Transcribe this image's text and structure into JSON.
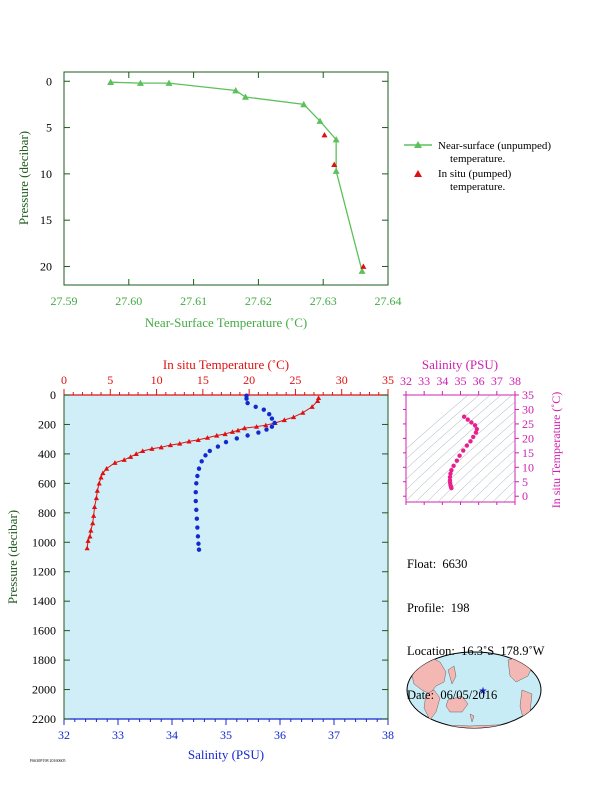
{
  "chart_data": [
    {
      "type": "line",
      "xlabel": "Near-Surface Temperature (˚C)",
      "ylabel": "Pressure (decibar)",
      "xlim": [
        27.59,
        27.64
      ],
      "ylim": [
        22,
        -1
      ],
      "x_ticks": [
        "27.59",
        "27.60",
        "27.61",
        "27.62",
        "27.63",
        "27.64"
      ],
      "y_ticks": [
        "0",
        "5",
        "10",
        "15",
        "20"
      ],
      "legend_placement": "right",
      "series": [
        {
          "name": "Near-surface (unpumped) temperature.",
          "color": "#5cc15c",
          "marker": "triangle",
          "points": [
            [
              27.5972,
              0.1
            ],
            [
              27.6018,
              0.2
            ],
            [
              27.6062,
              0.2
            ],
            [
              27.6165,
              1.0
            ],
            [
              27.618,
              1.7
            ],
            [
              27.627,
              2.5
            ],
            [
              27.6295,
              4.3
            ],
            [
              27.632,
              6.3
            ],
            [
              27.632,
              9.7
            ],
            [
              27.636,
              20.5
            ]
          ]
        },
        {
          "name": "In situ (pumped) temperature.",
          "color": "#e01010",
          "marker": "triangle",
          "points": [
            [
              27.6302,
              5.8
            ],
            [
              27.6317,
              9.0
            ],
            [
              27.6362,
              20.0
            ]
          ]
        }
      ]
    },
    {
      "type": "scatter",
      "xlabel_bottom": "Salinity (PSU)",
      "xlabel_top": "In situ Temperature (˚C)",
      "ylabel": "Pressure (decibar)",
      "salinity_range": [
        32,
        38
      ],
      "temperature_range": [
        0,
        35
      ],
      "pressure_range": [
        0,
        2200
      ],
      "salinity_ticks": [
        "32",
        "33",
        "34",
        "35",
        "36",
        "37",
        "38"
      ],
      "temperature_ticks": [
        "0",
        "5",
        "10",
        "15",
        "20",
        "25",
        "30",
        "35"
      ],
      "pressure_ticks": [
        "0",
        "200",
        "400",
        "600",
        "800",
        "1000",
        "1200",
        "1400",
        "1600",
        "1800",
        "2000",
        "2200"
      ],
      "background": "#d0eef8",
      "temperature_series": {
        "color": "#e01010",
        "marker": "triangle",
        "points": [
          [
            27.5,
            20
          ],
          [
            27.4,
            40
          ],
          [
            26.8,
            80
          ],
          [
            25.8,
            120
          ],
          [
            24.8,
            150
          ],
          [
            23.8,
            170
          ],
          [
            22.8,
            190
          ],
          [
            21.8,
            205
          ],
          [
            20.8,
            215
          ],
          [
            19.5,
            225
          ],
          [
            18.8,
            240
          ],
          [
            18.2,
            250
          ],
          [
            17.4,
            265
          ],
          [
            16.5,
            275
          ],
          [
            15.5,
            290
          ],
          [
            14.5,
            305
          ],
          [
            13.5,
            315
          ],
          [
            12.5,
            330
          ],
          [
            11.5,
            340
          ],
          [
            10.5,
            355
          ],
          [
            9.5,
            365
          ],
          [
            8.5,
            380
          ],
          [
            7.8,
            400
          ],
          [
            7.2,
            420
          ],
          [
            6.5,
            440
          ],
          [
            5.5,
            460
          ],
          [
            4.6,
            500
          ],
          [
            4.2,
            530
          ],
          [
            4.0,
            560
          ],
          [
            3.8,
            600
          ],
          [
            3.6,
            650
          ],
          [
            3.5,
            700
          ],
          [
            3.3,
            760
          ],
          [
            3.2,
            820
          ],
          [
            3.1,
            870
          ],
          [
            2.9,
            920
          ],
          [
            2.8,
            960
          ],
          [
            2.6,
            990
          ],
          [
            2.5,
            1040
          ]
        ]
      },
      "salinity_series": {
        "color": "#1428d0",
        "marker": "dot",
        "points": [
          [
            35.38,
            5
          ],
          [
            35.38,
            25
          ],
          [
            35.4,
            55
          ],
          [
            35.55,
            80
          ],
          [
            35.7,
            100
          ],
          [
            35.8,
            130
          ],
          [
            35.85,
            160
          ],
          [
            35.9,
            190
          ],
          [
            35.85,
            215
          ],
          [
            35.75,
            235
          ],
          [
            35.6,
            255
          ],
          [
            35.4,
            275
          ],
          [
            35.2,
            295
          ],
          [
            35.0,
            320
          ],
          [
            34.85,
            350
          ],
          [
            34.7,
            380
          ],
          [
            34.62,
            410
          ],
          [
            34.55,
            450
          ],
          [
            34.5,
            500
          ],
          [
            34.47,
            550
          ],
          [
            34.45,
            600
          ],
          [
            34.44,
            660
          ],
          [
            34.44,
            720
          ],
          [
            34.45,
            780
          ],
          [
            34.46,
            840
          ],
          [
            34.47,
            900
          ],
          [
            34.48,
            960
          ],
          [
            34.49,
            1010
          ],
          [
            34.5,
            1050
          ]
        ]
      }
    },
    {
      "type": "scatter",
      "xlabel": "Salinity (PSU)",
      "ylabel": "In situ Temperature (˚C)",
      "xlim": [
        32,
        38
      ],
      "ylim": [
        -2,
        35
      ],
      "x_ticks": [
        "32",
        "33",
        "34",
        "35",
        "36",
        "37",
        "38"
      ],
      "y_ticks": [
        "0",
        "5",
        "10",
        "15",
        "20",
        "25",
        "30",
        "35"
      ],
      "color": "#e8208e",
      "points": [
        [
          35.2,
          27.5
        ],
        [
          35.4,
          26.5
        ],
        [
          35.6,
          25.5
        ],
        [
          35.8,
          24.5
        ],
        [
          35.9,
          23.2
        ],
        [
          35.85,
          22
        ],
        [
          35.7,
          20.5
        ],
        [
          35.55,
          19
        ],
        [
          35.35,
          17.5
        ],
        [
          35.15,
          15.8
        ],
        [
          34.95,
          14
        ],
        [
          34.8,
          12.3
        ],
        [
          34.62,
          10.5
        ],
        [
          34.5,
          9
        ],
        [
          34.45,
          7.8
        ],
        [
          34.42,
          6.6
        ],
        [
          34.42,
          5.5
        ],
        [
          34.43,
          4.6
        ],
        [
          34.45,
          3.8
        ],
        [
          34.48,
          3.2
        ],
        [
          34.5,
          2.8
        ]
      ]
    }
  ],
  "float_info": {
    "float": "Float:  6630",
    "profile": "Profile:  198",
    "location": "Location:  16.3˚S  178.9˚W",
    "date": "Date:  06/05/2016"
  },
  "tiny_label": "F6630P198 20160605",
  "colors": {
    "green": "#5cc15c",
    "axis_green": "#2a8a2a",
    "title_green": "#44aa44",
    "red": "#e01010",
    "blue": "#1428d0",
    "magenta": "#d020b0",
    "dark_green_axis": "#1e5a1e"
  }
}
